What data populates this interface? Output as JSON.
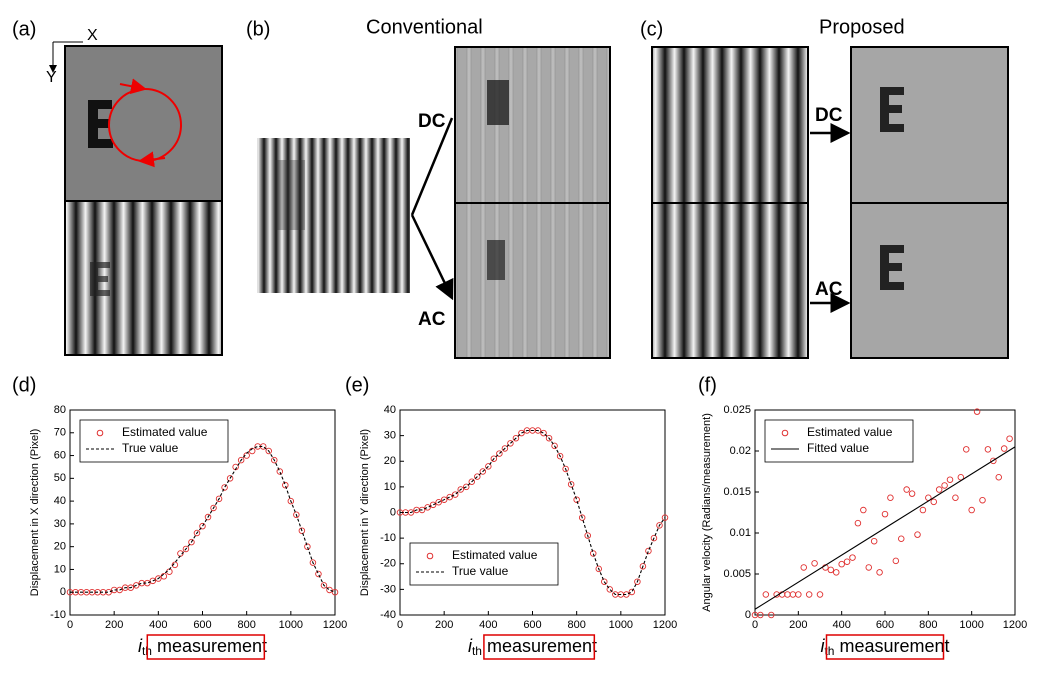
{
  "panels": {
    "a": "(a)",
    "axis_x": "X",
    "axis_y": "Y",
    "b": "(b)",
    "conventional": "Conventional",
    "dc_b": "DC",
    "ac_b": "AC",
    "c": "(c)",
    "proposed": "Proposed",
    "dc_c": "DC",
    "ac_c": "AC"
  },
  "chart_data": [
    {
      "type": "scatter-line",
      "label": "(d)",
      "ylabel": "Displacement in X direction (Pixel)",
      "xlabel": {
        "main": "i",
        "sub": "th",
        "rest": "measurement"
      },
      "xlim": [
        0,
        1200
      ],
      "xticks": [
        0,
        200,
        400,
        600,
        800,
        1000,
        1200
      ],
      "ylim": [
        -10,
        80
      ],
      "yticks": [
        -10,
        0,
        10,
        20,
        30,
        40,
        50,
        60,
        70,
        80
      ],
      "legend": "upper left",
      "highlight": [
        350,
        880
      ],
      "series": [
        {
          "name": "Estimated value",
          "color": "#e03030",
          "style": "markers",
          "x": [
            0,
            25,
            50,
            75,
            100,
            125,
            150,
            175,
            200,
            225,
            250,
            275,
            300,
            325,
            350,
            375,
            400,
            425,
            450,
            475,
            500,
            525,
            550,
            575,
            600,
            625,
            650,
            675,
            700,
            725,
            750,
            775,
            800,
            825,
            850,
            875,
            900,
            925,
            950,
            975,
            1000,
            1025,
            1050,
            1075,
            1100,
            1125,
            1150,
            1175,
            1200
          ],
          "values": [
            0,
            0,
            0,
            0,
            0,
            0,
            0,
            0,
            1,
            1,
            2,
            2,
            3,
            4,
            4,
            5,
            6,
            7,
            9,
            12,
            17,
            19,
            22,
            26,
            29,
            33,
            37,
            41,
            46,
            50,
            55,
            58,
            60,
            62,
            64,
            64,
            62,
            58,
            53,
            47,
            40,
            34,
            27,
            20,
            13,
            8,
            3,
            1,
            0
          ]
        },
        {
          "name": "True value",
          "color": "#000000",
          "style": "dashed",
          "x": [
            0,
            25,
            50,
            75,
            100,
            125,
            150,
            175,
            200,
            225,
            250,
            275,
            300,
            325,
            350,
            375,
            400,
            425,
            450,
            475,
            500,
            525,
            550,
            575,
            600,
            625,
            650,
            675,
            700,
            725,
            750,
            775,
            800,
            825,
            850,
            875,
            900,
            925,
            950,
            975,
            1000,
            1025,
            1050,
            1075,
            1100,
            1125,
            1150,
            1175,
            1200
          ],
          "values": [
            0,
            0,
            0,
            0,
            0,
            0,
            0,
            0,
            1,
            1,
            2,
            2,
            3,
            4,
            4,
            5,
            6,
            8,
            10,
            13,
            16,
            19,
            22,
            26,
            29,
            33,
            37,
            41,
            46,
            50,
            54,
            58,
            61,
            63,
            64,
            64,
            62,
            58,
            53,
            47,
            40,
            34,
            27,
            20,
            13,
            8,
            3,
            1,
            0
          ]
        }
      ]
    },
    {
      "type": "scatter-line",
      "label": "(e)",
      "ylabel": "Displacement in Y direction (Pixel)",
      "xlabel": {
        "main": "i",
        "sub": "th",
        "rest": "measurement"
      },
      "xlim": [
        0,
        1200
      ],
      "xticks": [
        0,
        200,
        400,
        600,
        800,
        1000,
        1200
      ],
      "ylim": [
        -40,
        40
      ],
      "yticks": [
        -40,
        -30,
        -20,
        -10,
        0,
        10,
        20,
        30,
        40
      ],
      "legend": "lower left",
      "highlight": [
        380,
        880
      ],
      "series": [
        {
          "name": "Estimated value",
          "color": "#e03030",
          "style": "markers",
          "x": [
            0,
            25,
            50,
            75,
            100,
            125,
            150,
            175,
            200,
            225,
            250,
            275,
            300,
            325,
            350,
            375,
            400,
            425,
            450,
            475,
            500,
            525,
            550,
            575,
            600,
            625,
            650,
            675,
            700,
            725,
            750,
            775,
            800,
            825,
            850,
            875,
            900,
            925,
            950,
            975,
            1000,
            1025,
            1050,
            1075,
            1100,
            1125,
            1150,
            1175,
            1200
          ],
          "values": [
            0,
            0,
            0,
            1,
            1,
            2,
            3,
            4,
            5,
            6,
            7,
            9,
            10,
            12,
            14,
            16,
            18,
            21,
            23,
            25,
            27,
            29,
            31,
            32,
            32,
            32,
            31,
            29,
            26,
            22,
            17,
            11,
            5,
            -2,
            -9,
            -16,
            -22,
            -27,
            -30,
            -32,
            -32,
            -32,
            -31,
            -27,
            -21,
            -15,
            -10,
            -5,
            -2
          ]
        },
        {
          "name": "True value",
          "color": "#000000",
          "style": "dashed",
          "x": [
            0,
            25,
            50,
            75,
            100,
            125,
            150,
            175,
            200,
            225,
            250,
            275,
            300,
            325,
            350,
            375,
            400,
            425,
            450,
            475,
            500,
            525,
            550,
            575,
            600,
            625,
            650,
            675,
            700,
            725,
            750,
            775,
            800,
            825,
            850,
            875,
            900,
            925,
            950,
            975,
            1000,
            1025,
            1050,
            1075,
            1100,
            1125,
            1150,
            1175,
            1200
          ],
          "values": [
            0,
            0,
            0,
            1,
            1,
            2,
            3,
            4,
            5,
            6,
            7,
            9,
            10,
            12,
            14,
            16,
            18,
            21,
            23,
            25,
            27,
            29,
            31,
            32,
            32,
            32,
            31,
            29,
            26,
            22,
            17,
            11,
            5,
            -2,
            -9,
            -16,
            -22,
            -27,
            -30,
            -32,
            -32,
            -32,
            -31,
            -27,
            -21,
            -15,
            -10,
            -5,
            -2
          ]
        }
      ]
    },
    {
      "type": "scatter-line",
      "label": "(f)",
      "ylabel": "Angular velocity (Radians/measurement)",
      "xlabel": {
        "main": "i",
        "sub": "th",
        "rest": "measurement"
      },
      "xlim": [
        0,
        1200
      ],
      "xticks": [
        0,
        200,
        400,
        600,
        800,
        1000,
        1200
      ],
      "ylim": [
        0,
        0.025
      ],
      "yticks": [
        0,
        0.005,
        0.01,
        0.015,
        0.02,
        0.025
      ],
      "legend": "upper left",
      "highlight": [
        330,
        870
      ],
      "series": [
        {
          "name": "Estimated value",
          "color": "#e03030",
          "style": "markers",
          "x": [
            0,
            25,
            50,
            75,
            100,
            125,
            150,
            175,
            200,
            225,
            250,
            275,
            300,
            325,
            350,
            375,
            400,
            425,
            450,
            475,
            500,
            525,
            550,
            575,
            600,
            625,
            650,
            675,
            700,
            725,
            750,
            775,
            800,
            825,
            850,
            875,
            900,
            925,
            950,
            975,
            1000,
            1025,
            1050,
            1075,
            1100,
            1125,
            1150,
            1175
          ],
          "values": [
            0,
            0,
            0.0025,
            0,
            0.0025,
            0.0025,
            0.0025,
            0.0025,
            0.0025,
            0.0058,
            0.0025,
            0.0063,
            0.0025,
            0.0058,
            0.0055,
            0.0052,
            0.0062,
            0.0065,
            0.007,
            0.0112,
            0.0128,
            0.0058,
            0.009,
            0.0052,
            0.0123,
            0.0143,
            0.0066,
            0.0093,
            0.0153,
            0.0148,
            0.0098,
            0.0128,
            0.0143,
            0.0138,
            0.0153,
            0.0158,
            0.0165,
            0.0143,
            0.0168,
            0.0202,
            0.0128,
            0.0248,
            0.014,
            0.0202,
            0.0188,
            0.0168,
            0.0203,
            0.0215
          ]
        },
        {
          "name": "Fitted value",
          "color": "#000000",
          "style": "solid",
          "x": [
            0,
            1200
          ],
          "values": [
            0.0007,
            0.0205
          ]
        }
      ]
    }
  ]
}
